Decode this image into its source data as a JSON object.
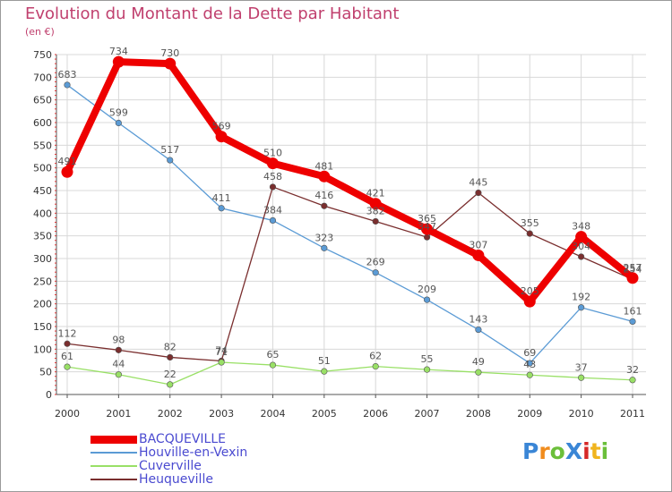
{
  "title": "Evolution du Montant de la Dette par Habitant",
  "unit_label": "(en €)",
  "logo": {
    "text": "ProXiti",
    "letter_colors": [
      "#3a86d6",
      "#f08c1e",
      "#6bbf3a",
      "#3a86d6",
      "#d62828",
      "#f0b41e",
      "#6bbf3a"
    ]
  },
  "chart_data": {
    "type": "line",
    "x": [
      "2000",
      "2001",
      "2002",
      "2003",
      "2004",
      "2005",
      "2006",
      "2007",
      "2008",
      "2009",
      "2010",
      "2011"
    ],
    "ylim": [
      0,
      750
    ],
    "yticks": [
      0,
      50,
      100,
      150,
      200,
      250,
      300,
      350,
      400,
      450,
      500,
      550,
      600,
      650,
      700,
      750
    ],
    "grid": true,
    "legend_position": "bottom-left",
    "series": [
      {
        "name": "BACQUEVILLE",
        "color": "#ee0000",
        "values": [
          491,
          734,
          730,
          569,
          510,
          481,
          421,
          365,
          307,
          205,
          348,
          257
        ]
      },
      {
        "name": "Houville-en-Vexin",
        "color": "#5b9bd5",
        "values": [
          683,
          599,
          517,
          411,
          384,
          323,
          269,
          209,
          143,
          69,
          192,
          161
        ]
      },
      {
        "name": "Cuverville",
        "color": "#99e066",
        "values": [
          61,
          44,
          22,
          71,
          65,
          51,
          62,
          55,
          49,
          43,
          37,
          32
        ]
      },
      {
        "name": "Heuqueville",
        "color": "#7a2e2e",
        "values": [
          112,
          98,
          82,
          74,
          458,
          416,
          382,
          347,
          445,
          355,
          304,
          254
        ]
      }
    ]
  }
}
